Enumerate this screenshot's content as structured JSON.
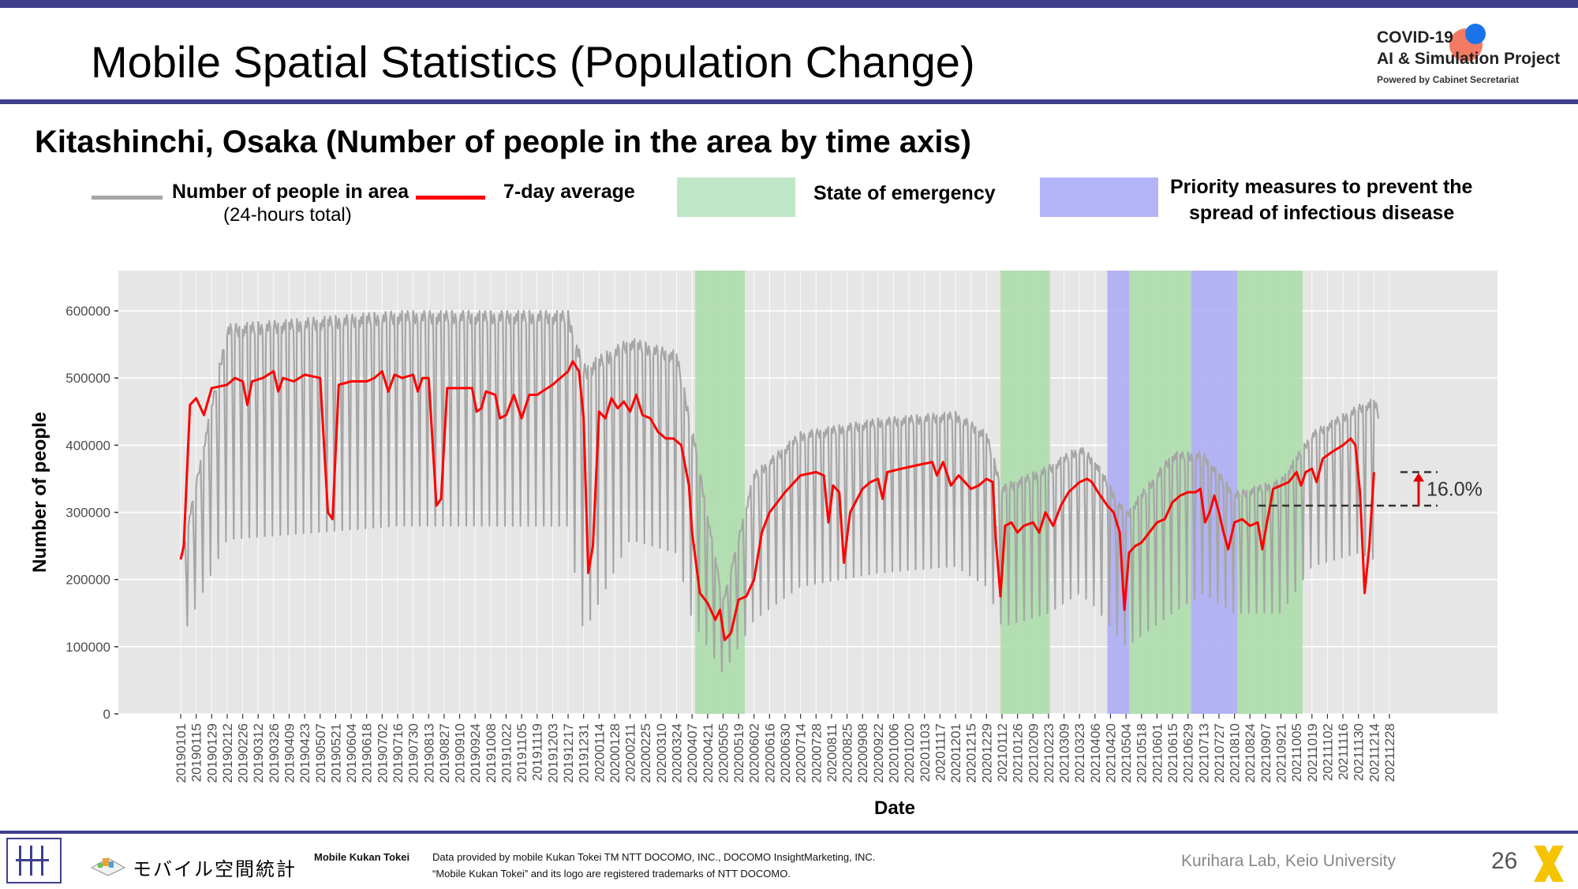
{
  "slide": {
    "title": "Mobile Spatial Statistics (Population Change)",
    "subtitle": "Kitashinchi, Osaka (Number of people in the area by time axis)",
    "page_number": "26"
  },
  "logo": {
    "line1": "COVID-19",
    "line2": "AI & Simulation Project",
    "line3": "Powered by Cabinet Secretariat"
  },
  "legend": {
    "people_label": "Number of people in area",
    "people_sublabel": "(24-hours total)",
    "avg_label": "7-day average",
    "emergency_label": "State of emergency",
    "priority_label_line1": "Priority measures to prevent the",
    "priority_label_line2": "spread of infectious disease"
  },
  "footer": {
    "brand_jp": "モバイル空間統計",
    "brand_en": "Mobile Kukan Tokei",
    "note_line1": "Data provided by mobile Kukan Tokei TM NTT DOCOMO, INC., DOCOMO InsightMarketing, INC.",
    "note_line2": "“Mobile Kukan Tokei” and its logo are registered trademarks of NTT DOCOMO.",
    "lab": "Kurihara Lab, Keio University"
  },
  "colors": {
    "brand": "#3f3f8c",
    "daily_series": "#a6a6a6",
    "avg_series": "#ff0000",
    "emergency": "#a9dca8",
    "priority": "#a9a9f5",
    "plot_bg": "#e6e6e6"
  },
  "chart_data": {
    "type": "line",
    "xlabel": "Date",
    "ylabel": "Number of people",
    "ylim": [
      0,
      660000
    ],
    "yticks": [
      0,
      100000,
      200000,
      300000,
      400000,
      500000,
      600000
    ],
    "ytick_labels": [
      "0",
      "100000",
      "200000",
      "300000",
      "400000",
      "500000",
      "600000"
    ],
    "x_tick_labels": [
      "20190101",
      "20190115",
      "20190129",
      "20190212",
      "20190226",
      "20190312",
      "20190326",
      "20190409",
      "20190423",
      "20190507",
      "20190521",
      "20190604",
      "20190618",
      "20190702",
      "20190716",
      "20190730",
      "20190813",
      "20190827",
      "20190910",
      "20190924",
      "20191008",
      "20191022",
      "20191105",
      "20191119",
      "20191203",
      "20191217",
      "20191231",
      "20200114",
      "20200128",
      "20200211",
      "20200225",
      "20200310",
      "20200324",
      "20200407",
      "20200421",
      "20200505",
      "20200519",
      "20200602",
      "20200616",
      "20200630",
      "20200714",
      "20200728",
      "20200811",
      "20200825",
      "20200908",
      "20200922",
      "20201006",
      "20201020",
      "20201103",
      "20201117",
      "20201201",
      "20201215",
      "20201229",
      "20210112",
      "20210126",
      "20210209",
      "20210223",
      "20210309",
      "20210323",
      "20210406",
      "20210420",
      "20210504",
      "20210518",
      "20210601",
      "20210615",
      "20210629",
      "20210713",
      "20210727",
      "20210810",
      "20210824",
      "20210907",
      "20210921",
      "20211005",
      "20211019",
      "20211102",
      "20211116",
      "20211130",
      "20211214",
      "20211228"
    ],
    "grid": true,
    "legend_position": "top",
    "weekly_pattern": {
      "description": "daily values oscillate weekly between a weekday high and a Sunday low",
      "highs": [
        [
          0,
          230000
        ],
        [
          3,
          580000
        ],
        [
          14,
          600000
        ],
        [
          25,
          600000
        ],
        [
          26,
          520000
        ],
        [
          29,
          560000
        ],
        [
          32,
          540000
        ],
        [
          33,
          430000
        ],
        [
          35,
          170000
        ],
        [
          37,
          360000
        ],
        [
          40,
          420000
        ],
        [
          45,
          440000
        ],
        [
          50,
          450000
        ],
        [
          52,
          420000
        ],
        [
          53,
          340000
        ],
        [
          56,
          370000
        ],
        [
          58,
          400000
        ],
        [
          59,
          380000
        ],
        [
          61,
          300000
        ],
        [
          64,
          390000
        ],
        [
          66,
          390000
        ],
        [
          68,
          330000
        ],
        [
          71,
          350000
        ],
        [
          73,
          420000
        ],
        [
          76,
          460000
        ],
        [
          77,
          470000
        ],
        [
          78,
          420000
        ]
      ],
      "lows": [
        [
          0,
          110000
        ],
        [
          3,
          260000
        ],
        [
          14,
          280000
        ],
        [
          25,
          280000
        ],
        [
          26,
          120000
        ],
        [
          29,
          260000
        ],
        [
          32,
          240000
        ],
        [
          33,
          140000
        ],
        [
          35,
          60000
        ],
        [
          37,
          140000
        ],
        [
          40,
          190000
        ],
        [
          45,
          210000
        ],
        [
          50,
          220000
        ],
        [
          52,
          190000
        ],
        [
          53,
          130000
        ],
        [
          56,
          150000
        ],
        [
          58,
          180000
        ],
        [
          59,
          160000
        ],
        [
          61,
          100000
        ],
        [
          64,
          150000
        ],
        [
          66,
          180000
        ],
        [
          68,
          150000
        ],
        [
          71,
          150000
        ],
        [
          73,
          220000
        ],
        [
          76,
          240000
        ],
        [
          77,
          230000
        ],
        [
          78,
          70000
        ]
      ]
    },
    "series": [
      {
        "name": "7-day average",
        "points": [
          [
            0,
            230000
          ],
          [
            0.2,
            250000
          ],
          [
            0.6,
            460000
          ],
          [
            1,
            470000
          ],
          [
            1.5,
            445000
          ],
          [
            2,
            485000
          ],
          [
            3,
            490000
          ],
          [
            3.5,
            500000
          ],
          [
            4,
            495000
          ],
          [
            4.3,
            460000
          ],
          [
            4.6,
            495000
          ],
          [
            5.3,
            500000
          ],
          [
            6,
            510000
          ],
          [
            6.3,
            480000
          ],
          [
            6.6,
            500000
          ],
          [
            7.3,
            495000
          ],
          [
            8,
            505000
          ],
          [
            9,
            500000
          ],
          [
            9.5,
            300000
          ],
          [
            9.8,
            290000
          ],
          [
            10.2,
            490000
          ],
          [
            11,
            495000
          ],
          [
            12,
            495000
          ],
          [
            12.5,
            500000
          ],
          [
            13,
            510000
          ],
          [
            13.4,
            480000
          ],
          [
            13.8,
            505000
          ],
          [
            14.3,
            500000
          ],
          [
            15,
            505000
          ],
          [
            15.3,
            480000
          ],
          [
            15.6,
            500000
          ],
          [
            16,
            500000
          ],
          [
            16.5,
            310000
          ],
          [
            16.8,
            320000
          ],
          [
            17.2,
            485000
          ],
          [
            18,
            485000
          ],
          [
            18.8,
            485000
          ],
          [
            19.1,
            450000
          ],
          [
            19.4,
            455000
          ],
          [
            19.7,
            480000
          ],
          [
            20.3,
            475000
          ],
          [
            20.6,
            440000
          ],
          [
            21,
            445000
          ],
          [
            21.5,
            475000
          ],
          [
            22,
            440000
          ],
          [
            22.5,
            475000
          ],
          [
            23,
            475000
          ],
          [
            24,
            490000
          ],
          [
            25,
            510000
          ],
          [
            25.3,
            525000
          ],
          [
            25.7,
            510000
          ],
          [
            26,
            440000
          ],
          [
            26.3,
            210000
          ],
          [
            26.6,
            250000
          ],
          [
            27,
            450000
          ],
          [
            27.4,
            440000
          ],
          [
            27.8,
            470000
          ],
          [
            28.2,
            455000
          ],
          [
            28.6,
            465000
          ],
          [
            29,
            450000
          ],
          [
            29.4,
            475000
          ],
          [
            29.8,
            445000
          ],
          [
            30.3,
            440000
          ],
          [
            30.8,
            420000
          ],
          [
            31.3,
            410000
          ],
          [
            31.8,
            410000
          ],
          [
            32.3,
            400000
          ],
          [
            32.8,
            340000
          ],
          [
            33,
            270000
          ],
          [
            33.5,
            180000
          ],
          [
            34,
            165000
          ],
          [
            34.5,
            140000
          ],
          [
            34.8,
            155000
          ],
          [
            35.1,
            110000
          ],
          [
            35.5,
            120000
          ],
          [
            36,
            170000
          ],
          [
            36.5,
            175000
          ],
          [
            37,
            200000
          ],
          [
            37.5,
            270000
          ],
          [
            38,
            300000
          ],
          [
            39,
            330000
          ],
          [
            40,
            355000
          ],
          [
            41,
            360000
          ],
          [
            41.5,
            355000
          ],
          [
            41.8,
            285000
          ],
          [
            42.1,
            340000
          ],
          [
            42.5,
            330000
          ],
          [
            42.8,
            225000
          ],
          [
            43.2,
            300000
          ],
          [
            44,
            335000
          ],
          [
            44.5,
            345000
          ],
          [
            45,
            350000
          ],
          [
            45.3,
            320000
          ],
          [
            45.6,
            360000
          ],
          [
            46.5,
            365000
          ],
          [
            47.5,
            370000
          ],
          [
            48.5,
            375000
          ],
          [
            48.8,
            355000
          ],
          [
            49.2,
            375000
          ],
          [
            49.7,
            340000
          ],
          [
            50.2,
            355000
          ],
          [
            51,
            335000
          ],
          [
            51.5,
            340000
          ],
          [
            52,
            350000
          ],
          [
            52.4,
            345000
          ],
          [
            52.6,
            260000
          ],
          [
            52.9,
            175000
          ],
          [
            53.2,
            280000
          ],
          [
            53.6,
            285000
          ],
          [
            54,
            270000
          ],
          [
            54.4,
            280000
          ],
          [
            55,
            285000
          ],
          [
            55.4,
            270000
          ],
          [
            55.8,
            300000
          ],
          [
            56.3,
            280000
          ],
          [
            56.8,
            310000
          ],
          [
            57.3,
            330000
          ],
          [
            58,
            345000
          ],
          [
            58.5,
            350000
          ],
          [
            58.8,
            345000
          ],
          [
            59.2,
            330000
          ],
          [
            59.8,
            310000
          ],
          [
            60.2,
            300000
          ],
          [
            60.6,
            270000
          ],
          [
            60.9,
            155000
          ],
          [
            61.2,
            240000
          ],
          [
            61.6,
            250000
          ],
          [
            62,
            255000
          ],
          [
            62.5,
            270000
          ],
          [
            63,
            285000
          ],
          [
            63.5,
            290000
          ],
          [
            64,
            315000
          ],
          [
            64.5,
            325000
          ],
          [
            65,
            330000
          ],
          [
            65.5,
            330000
          ],
          [
            65.8,
            335000
          ],
          [
            66.1,
            285000
          ],
          [
            66.4,
            300000
          ],
          [
            66.7,
            325000
          ],
          [
            67,
            300000
          ],
          [
            67.3,
            270000
          ],
          [
            67.6,
            245000
          ],
          [
            68,
            285000
          ],
          [
            68.5,
            290000
          ],
          [
            69,
            280000
          ],
          [
            69.5,
            285000
          ],
          [
            69.8,
            245000
          ],
          [
            70.1,
            285000
          ],
          [
            70.5,
            335000
          ],
          [
            71,
            340000
          ],
          [
            71.5,
            345000
          ],
          [
            72,
            360000
          ],
          [
            72.3,
            340000
          ],
          [
            72.6,
            360000
          ],
          [
            73,
            365000
          ],
          [
            73.3,
            345000
          ],
          [
            73.7,
            380000
          ],
          [
            74.3,
            390000
          ],
          [
            75,
            400000
          ],
          [
            75.5,
            410000
          ],
          [
            75.8,
            400000
          ],
          [
            76.1,
            330000
          ],
          [
            76.4,
            180000
          ],
          [
            76.7,
            250000
          ],
          [
            77,
            360000
          ]
        ]
      }
    ],
    "emergency_periods": [
      [
        33.2,
        36.4
      ],
      [
        52.9,
        56.1
      ],
      [
        61.2,
        65.2
      ],
      [
        68.2,
        72.4
      ]
    ],
    "priority_periods": [
      [
        59.8,
        61.2
      ],
      [
        65.2,
        68.2
      ]
    ],
    "annotation": {
      "text": "16.0%",
      "from_value": 310000,
      "to_value": 360000
    }
  }
}
